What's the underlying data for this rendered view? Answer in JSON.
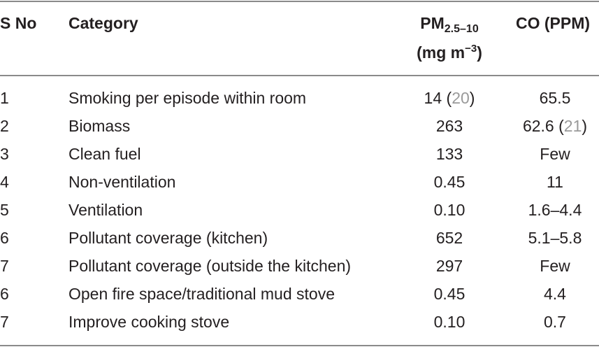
{
  "table": {
    "headers": {
      "sno": "S No",
      "category": "Category",
      "pm_main": "PM",
      "pm_sub": "2.5–10",
      "pm_unit_open": "(mg m",
      "pm_unit_sup": "−3",
      "pm_unit_close": ")",
      "co": "CO (PPM)"
    },
    "rows": [
      {
        "sno": "1",
        "category": "Smoking per episode within room",
        "pm": "14 (",
        "pm_ref": "20",
        "pm_close": ")",
        "co": "65.5",
        "co_ref": "",
        "co_close": ""
      },
      {
        "sno": "2",
        "category": "Biomass",
        "pm": "263",
        "pm_ref": "",
        "pm_close": "",
        "co": "62.6 (",
        "co_ref": "21",
        "co_close": ")"
      },
      {
        "sno": "3",
        "category": "Clean fuel",
        "pm": "133",
        "pm_ref": "",
        "pm_close": "",
        "co": "Few",
        "co_ref": "",
        "co_close": ""
      },
      {
        "sno": "4",
        "category": "Non-ventilation",
        "pm": "0.45",
        "pm_ref": "",
        "pm_close": "",
        "co": "11",
        "co_ref": "",
        "co_close": ""
      },
      {
        "sno": "5",
        "category": "Ventilation",
        "pm": "0.10",
        "pm_ref": "",
        "pm_close": "",
        "co": "1.6–4.4",
        "co_ref": "",
        "co_close": ""
      },
      {
        "sno": "6",
        "category": "Pollutant coverage (kitchen)",
        "pm": "652",
        "pm_ref": "",
        "pm_close": "",
        "co": "5.1–5.8",
        "co_ref": "",
        "co_close": ""
      },
      {
        "sno": "7",
        "category": "Pollutant coverage (outside the kitchen)",
        "pm": "297",
        "pm_ref": "",
        "pm_close": "",
        "co": "Few",
        "co_ref": "",
        "co_close": ""
      },
      {
        "sno": "6",
        "category": "Open fire space/traditional mud stove",
        "pm": "0.45",
        "pm_ref": "",
        "pm_close": "",
        "co": "4.4",
        "co_ref": "",
        "co_close": ""
      },
      {
        "sno": "7",
        "category": "Improve cooking stove",
        "pm": "0.10",
        "pm_ref": "",
        "pm_close": "",
        "co": "0.7",
        "co_ref": "",
        "co_close": ""
      }
    ]
  }
}
